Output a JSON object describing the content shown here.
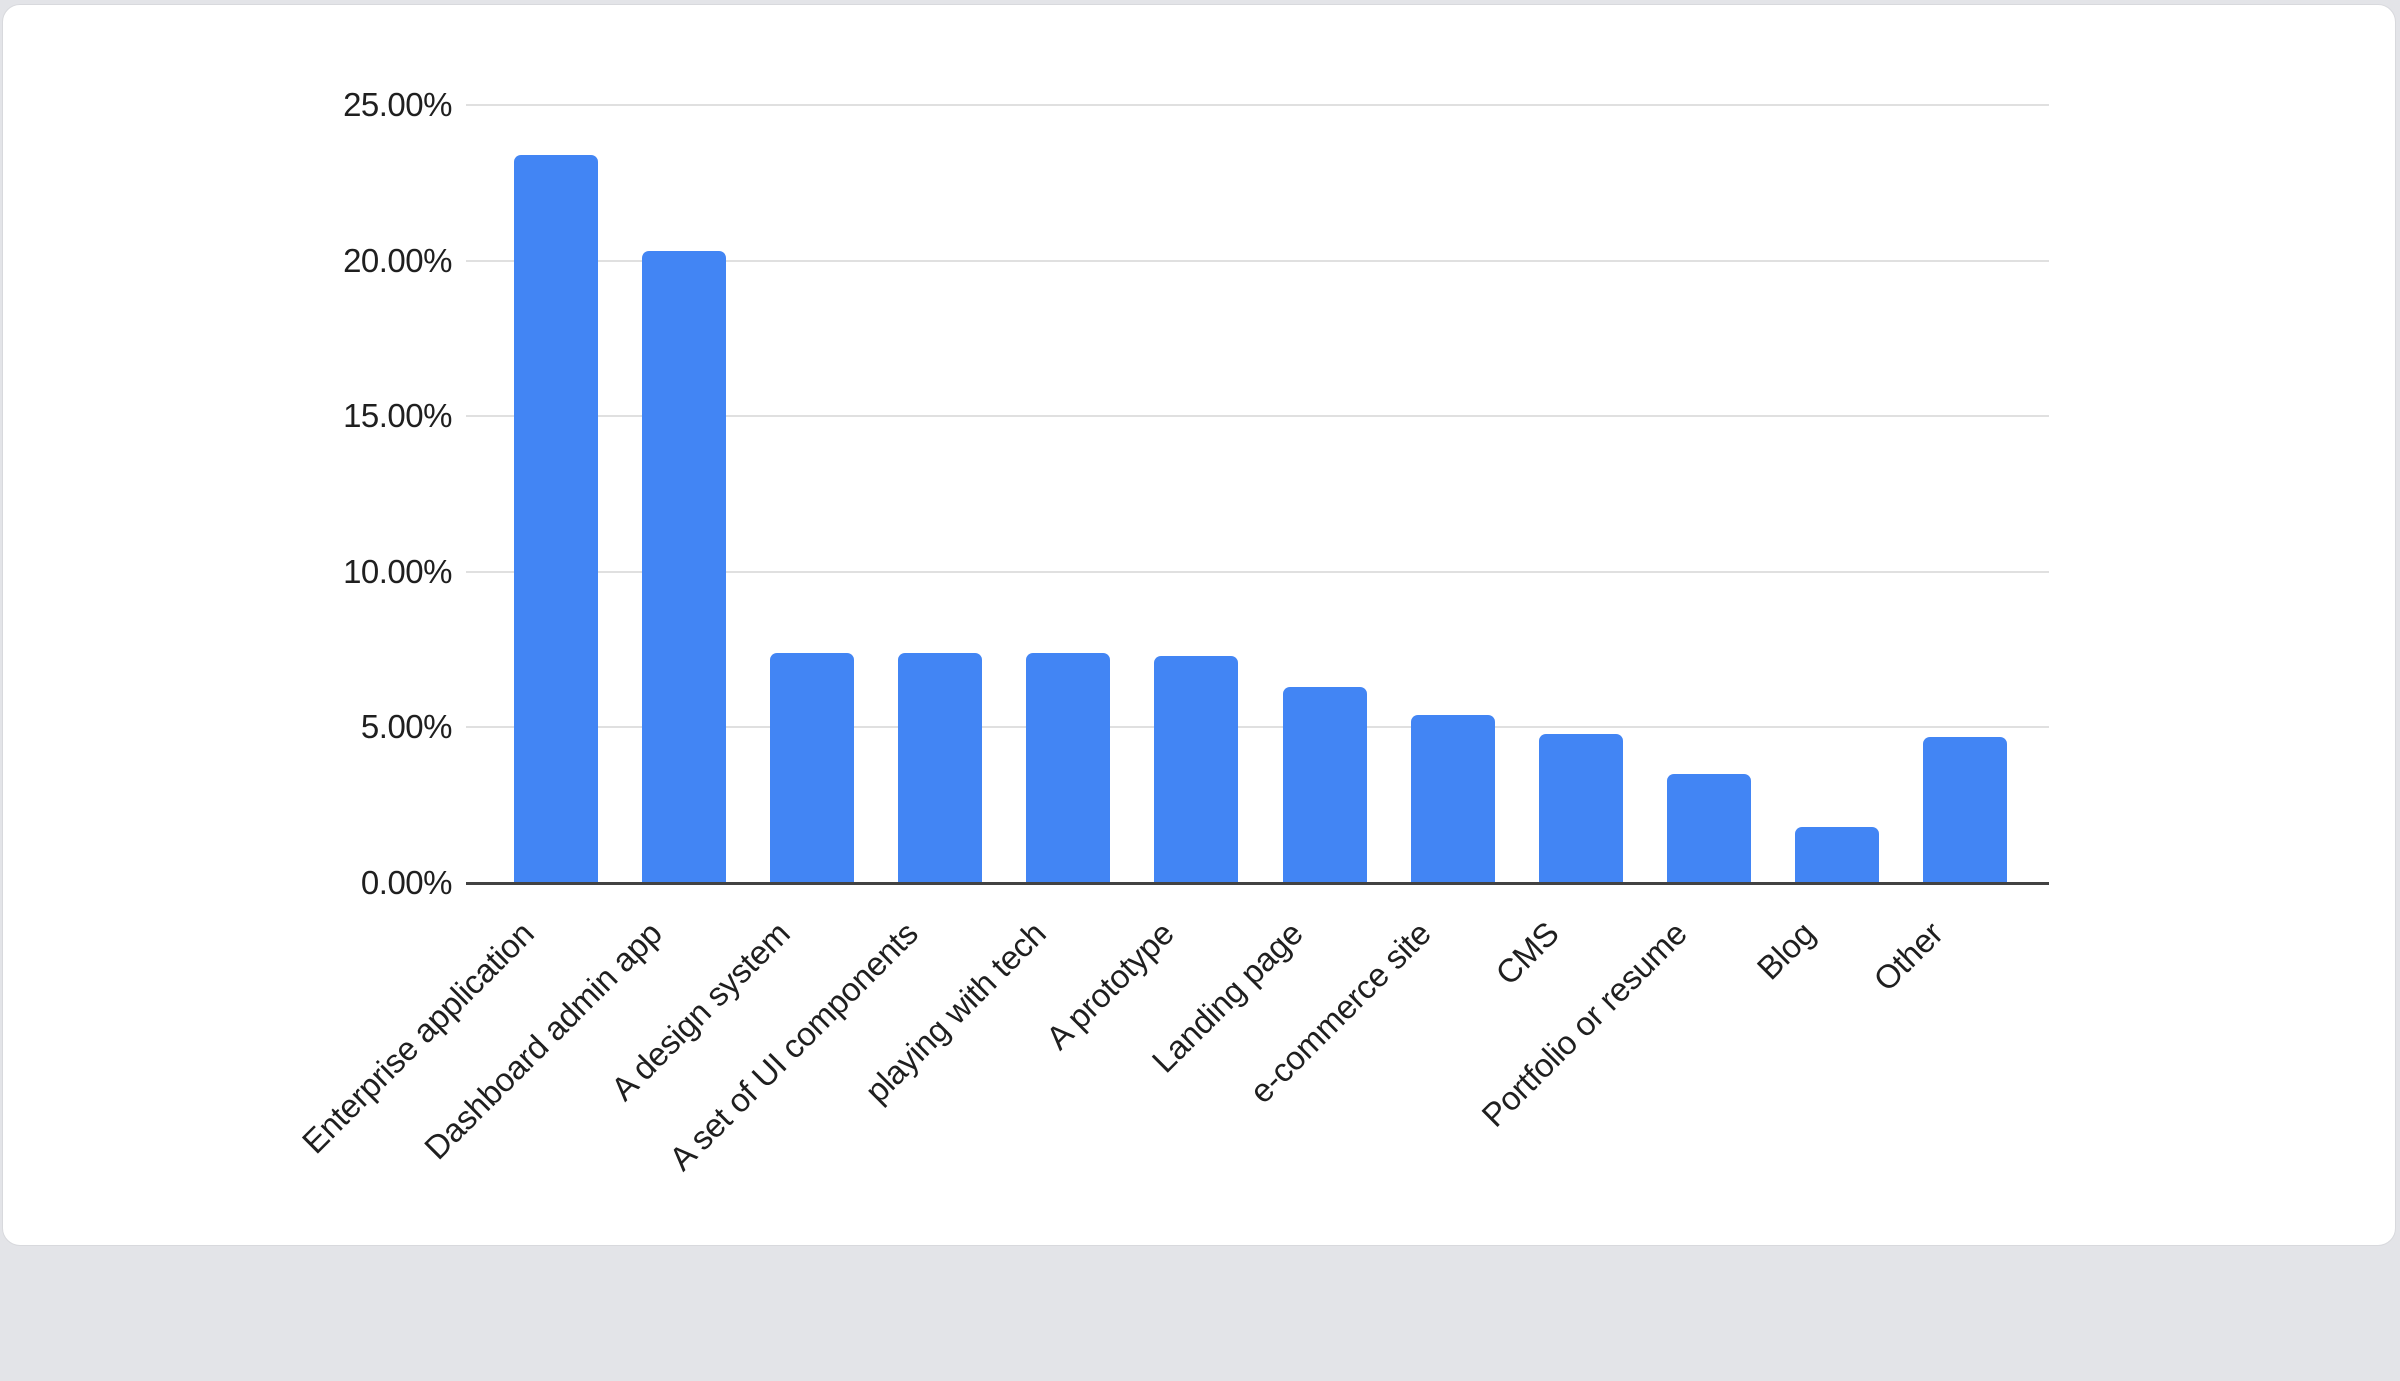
{
  "page": {
    "background_color": "#e3e4e8",
    "card_background": "#ffffff",
    "card_border_color": "#d8d9dd"
  },
  "chart_data": {
    "type": "bar",
    "title": "",
    "categories": [
      "Enterprise application",
      "Dashboard admin app",
      "A design system",
      "A set of UI components",
      "playing with tech",
      "A prototype",
      "Landing page",
      "e-commerce site",
      "CMS",
      "Portfolio or resume",
      "Blog",
      "Other"
    ],
    "values": [
      23.4,
      20.3,
      7.4,
      7.4,
      7.4,
      7.3,
      6.3,
      5.4,
      4.8,
      3.5,
      1.8,
      4.7
    ],
    "y_tick_labels": [
      "25.00%",
      "20.00%",
      "15.00%",
      "10.00%",
      "5.00%",
      "0.00%"
    ],
    "y_tick_values": [
      25,
      20,
      15,
      10,
      5,
      0
    ],
    "ylim": [
      0,
      25
    ],
    "xlabel": "",
    "ylabel": "",
    "grid": true,
    "legend_position": "none",
    "bar_color": "#4285f4",
    "gridline_color": "#e0e0e0",
    "axis_line_color": "#424242",
    "tick_label_color": "#1f1f1f"
  }
}
